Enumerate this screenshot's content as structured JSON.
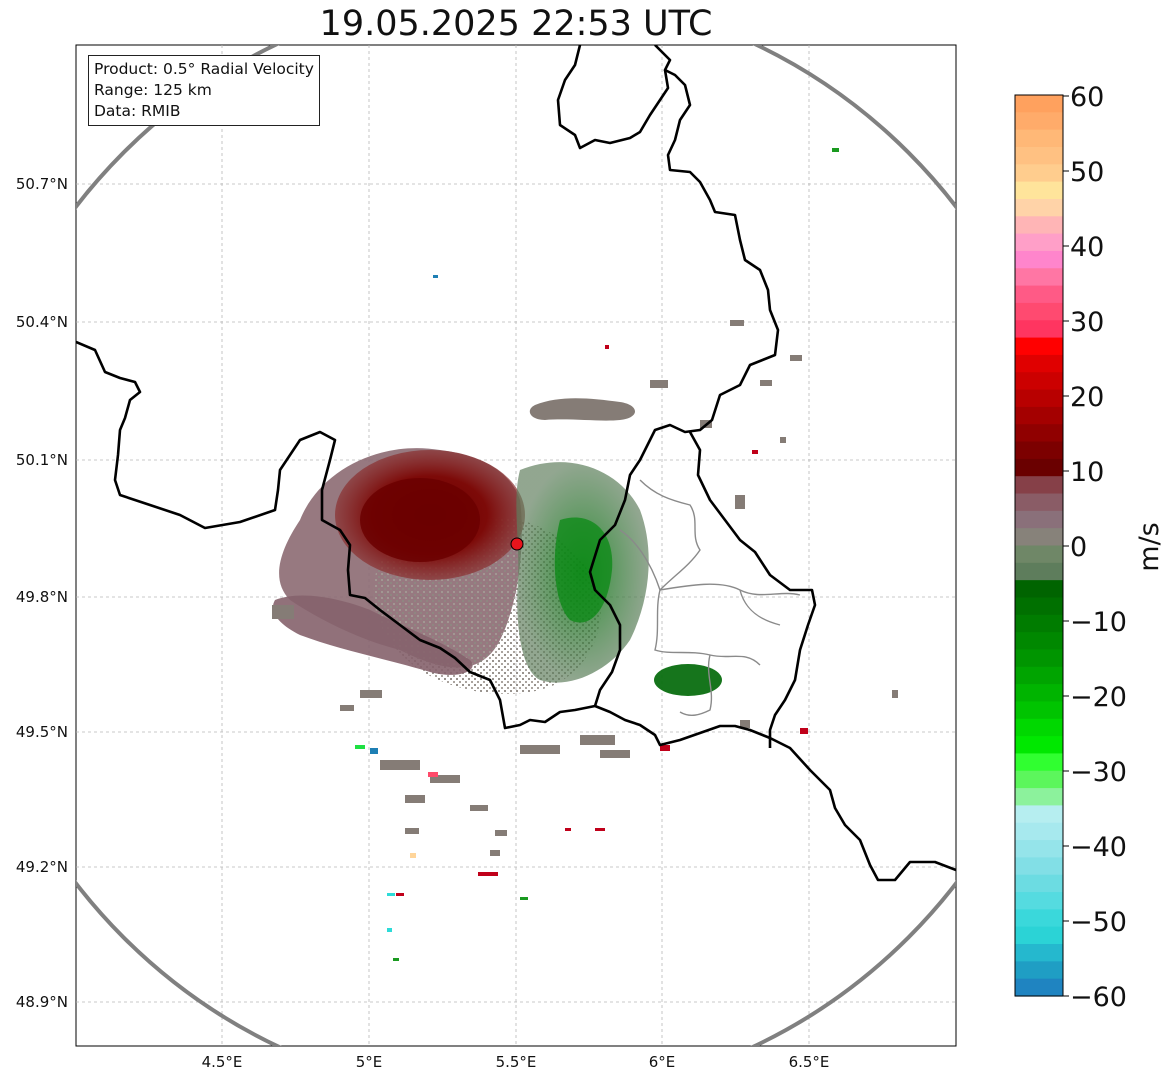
{
  "title": "19.05.2025 22:53 UTC",
  "info": {
    "product": "Product: 0.5° Radial Velocity",
    "range": "Range: 125 km",
    "data": "Data: RMIB"
  },
  "lat_ticks": [
    "50.7°N",
    "50.4°N",
    "50.1°N",
    "49.8°N",
    "49.5°N",
    "49.2°N",
    "48.9°N"
  ],
  "lon_ticks": [
    "4.5°E",
    "5°E",
    "5.5°E",
    "6°E",
    "6.5°E"
  ],
  "colorbar": {
    "label": "m/s",
    "ticks": [
      "60",
      "50",
      "40",
      "30",
      "20",
      "10",
      "0",
      "−10",
      "−20",
      "−30",
      "−40",
      "−50",
      "−60"
    ],
    "min": -60,
    "max": 60
  },
  "radar_site": {
    "lon": 5.5,
    "lat": 49.91
  },
  "colors": {
    "range_ring": "#808080",
    "border": "#000000",
    "site_marker": "#e8141c",
    "inbound_strong": "#006400",
    "outbound_strong": "#7a0000",
    "near_zero": "#857c76"
  }
}
